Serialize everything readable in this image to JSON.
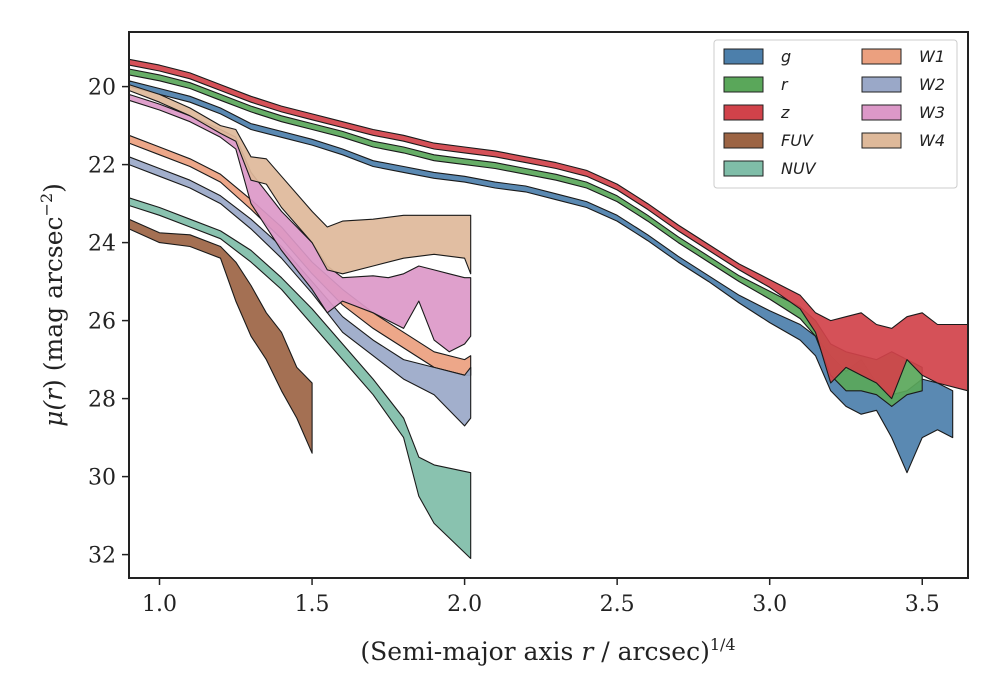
{
  "chart_data": {
    "type": "area",
    "xlabel_main": "(Semi-major axis ",
    "xlabel_var": "r",
    "xlabel_tail": " / arcsec)",
    "xlabel_exp": "1/4",
    "ylabel_main": "μ(",
    "ylabel_var": "r",
    "ylabel_tail": ") (mag arcsec",
    "ylabel_exp": "−2",
    "ylabel_close": ")",
    "xlim": [
      0.9,
      3.65
    ],
    "ylim": [
      32.6,
      18.6
    ],
    "y_inverted": true,
    "grid": false,
    "legend_placement": "top-right",
    "xticks": [
      1.0,
      1.5,
      2.0,
      2.5,
      3.0,
      3.5
    ],
    "xtick_labels": [
      "1.0",
      "1.5",
      "2.0",
      "2.5",
      "3.0",
      "3.5"
    ],
    "yticks": [
      20,
      22,
      24,
      26,
      28,
      30,
      32
    ],
    "ytick_labels": [
      "20",
      "22",
      "24",
      "26",
      "28",
      "30",
      "32"
    ],
    "series": [
      {
        "name": "g",
        "color": "#4c7fab",
        "x": [
          0.9,
          1.0,
          1.1,
          1.2,
          1.3,
          1.4,
          1.5,
          1.6,
          1.7,
          1.8,
          1.9,
          2.0,
          2.1,
          2.2,
          2.3,
          2.4,
          2.5,
          2.6,
          2.7,
          2.8,
          2.9,
          3.0,
          3.1,
          3.15,
          3.2,
          3.25,
          3.3,
          3.35,
          3.4,
          3.45,
          3.5,
          3.55,
          3.6
        ],
        "y1": [
          19.85,
          20.05,
          20.25,
          20.55,
          20.95,
          21.15,
          21.35,
          21.6,
          21.9,
          22.05,
          22.2,
          22.3,
          22.45,
          22.55,
          22.75,
          22.95,
          23.3,
          23.8,
          24.35,
          24.85,
          25.35,
          25.75,
          26.1,
          26.4,
          26.9,
          27.3,
          27.0,
          27.6,
          27.9,
          27.8,
          27.5,
          27.6,
          27.8
        ],
        "y2": [
          20.0,
          20.2,
          20.4,
          20.7,
          21.1,
          21.3,
          21.5,
          21.75,
          22.05,
          22.2,
          22.35,
          22.45,
          22.6,
          22.7,
          22.9,
          23.1,
          23.45,
          23.95,
          24.5,
          25.0,
          25.55,
          26.05,
          26.5,
          26.9,
          27.8,
          28.2,
          28.4,
          28.3,
          29.0,
          29.9,
          29.0,
          28.8,
          29.0
        ]
      },
      {
        "name": "r",
        "color": "#5aa75a",
        "x": [
          0.9,
          1.0,
          1.1,
          1.2,
          1.3,
          1.4,
          1.5,
          1.6,
          1.7,
          1.8,
          1.9,
          2.0,
          2.1,
          2.2,
          2.3,
          2.4,
          2.5,
          2.6,
          2.7,
          2.8,
          2.9,
          3.0,
          3.1,
          3.15,
          3.2,
          3.25,
          3.3,
          3.35,
          3.4,
          3.45,
          3.5
        ],
        "y1": [
          19.55,
          19.7,
          19.9,
          20.2,
          20.5,
          20.75,
          20.95,
          21.15,
          21.4,
          21.55,
          21.75,
          21.85,
          21.95,
          22.1,
          22.25,
          22.45,
          22.8,
          23.3,
          23.85,
          24.35,
          24.85,
          25.25,
          25.65,
          26.0,
          26.6,
          26.8,
          26.9,
          27.0,
          26.8,
          27.0,
          27.2
        ],
        "y2": [
          19.7,
          19.85,
          20.05,
          20.35,
          20.65,
          20.9,
          21.1,
          21.3,
          21.55,
          21.7,
          21.9,
          22.0,
          22.1,
          22.25,
          22.4,
          22.6,
          22.95,
          23.45,
          24.0,
          24.5,
          25.0,
          25.45,
          25.95,
          26.4,
          27.4,
          27.8,
          27.8,
          27.9,
          28.2,
          27.9,
          27.8
        ]
      },
      {
        "name": "z",
        "color": "#d1424a",
        "x": [
          0.9,
          1.0,
          1.1,
          1.2,
          1.3,
          1.4,
          1.5,
          1.6,
          1.7,
          1.8,
          1.9,
          2.0,
          2.1,
          2.2,
          2.3,
          2.4,
          2.5,
          2.6,
          2.7,
          2.8,
          2.9,
          3.0,
          3.1,
          3.15,
          3.2,
          3.25,
          3.3,
          3.35,
          3.4,
          3.45,
          3.5,
          3.55,
          3.65
        ],
        "y1": [
          19.3,
          19.45,
          19.65,
          19.95,
          20.25,
          20.5,
          20.7,
          20.9,
          21.1,
          21.25,
          21.45,
          21.55,
          21.65,
          21.8,
          21.95,
          22.15,
          22.5,
          23.0,
          23.55,
          24.05,
          24.55,
          24.95,
          25.35,
          25.8,
          26.0,
          25.9,
          25.8,
          26.1,
          26.2,
          25.9,
          25.8,
          26.1,
          26.1
        ],
        "y2": [
          19.45,
          19.6,
          19.8,
          20.1,
          20.4,
          20.65,
          20.85,
          21.05,
          21.25,
          21.4,
          21.6,
          21.7,
          21.8,
          21.95,
          22.1,
          22.3,
          22.65,
          23.15,
          23.7,
          24.2,
          24.7,
          25.15,
          25.7,
          26.3,
          27.6,
          27.2,
          27.4,
          27.6,
          28.0,
          27.0,
          27.4,
          27.6,
          27.8
        ]
      },
      {
        "name": "FUV",
        "color": "#9c6444",
        "x": [
          0.9,
          1.0,
          1.1,
          1.2,
          1.25,
          1.3,
          1.35,
          1.4,
          1.45,
          1.5
        ],
        "y1": [
          23.4,
          23.75,
          23.8,
          24.1,
          24.5,
          25.1,
          25.8,
          26.3,
          27.2,
          27.6
        ],
        "y2": [
          23.65,
          24.0,
          24.1,
          24.4,
          25.5,
          26.4,
          27.0,
          27.8,
          28.5,
          29.4
        ]
      },
      {
        "name": "NUV",
        "color": "#7fbda8",
        "x": [
          0.9,
          1.0,
          1.1,
          1.2,
          1.3,
          1.4,
          1.5,
          1.6,
          1.7,
          1.8,
          1.85,
          1.9,
          2.02
        ],
        "y1": [
          22.85,
          23.1,
          23.4,
          23.7,
          24.2,
          24.9,
          25.7,
          26.6,
          27.5,
          28.5,
          29.5,
          29.7,
          29.9
        ],
        "y2": [
          23.05,
          23.3,
          23.6,
          23.9,
          24.5,
          25.2,
          26.1,
          27.0,
          27.9,
          29.0,
          30.5,
          31.2,
          32.1
        ]
      },
      {
        "name": "W1",
        "color": "#eba07f",
        "x": [
          0.9,
          1.0,
          1.1,
          1.2,
          1.3,
          1.4,
          1.5,
          1.6,
          1.7,
          1.8,
          1.9,
          2.0,
          2.02
        ],
        "y1": [
          21.25,
          21.55,
          21.85,
          22.25,
          22.9,
          23.6,
          24.5,
          25.2,
          25.8,
          26.3,
          26.8,
          27.0,
          26.9
        ],
        "y2": [
          21.45,
          21.75,
          22.05,
          22.45,
          23.15,
          23.9,
          24.8,
          25.6,
          26.2,
          26.7,
          27.2,
          27.4,
          27.4
        ]
      },
      {
        "name": "W2",
        "color": "#9aa8c8",
        "x": [
          0.9,
          1.0,
          1.1,
          1.2,
          1.3,
          1.4,
          1.5,
          1.6,
          1.7,
          1.8,
          1.9,
          2.0,
          2.02
        ],
        "y1": [
          21.8,
          22.1,
          22.4,
          22.8,
          23.4,
          24.1,
          25.0,
          25.9,
          26.5,
          27.0,
          27.2,
          27.4,
          27.2
        ],
        "y2": [
          22.0,
          22.3,
          22.6,
          23.0,
          23.65,
          24.4,
          25.3,
          26.3,
          26.9,
          27.5,
          27.9,
          28.7,
          28.5
        ]
      },
      {
        "name": "W3",
        "color": "#dc98c8",
        "x": [
          0.9,
          1.0,
          1.1,
          1.2,
          1.25,
          1.3,
          1.4,
          1.5,
          1.55,
          1.6,
          1.7,
          1.75,
          1.8,
          1.85,
          1.9,
          1.95,
          2.0,
          2.02
        ],
        "y1": [
          20.2,
          20.45,
          20.75,
          21.1,
          21.3,
          22.2,
          23.2,
          24.0,
          24.6,
          24.9,
          24.85,
          24.9,
          24.8,
          24.6,
          24.7,
          24.8,
          24.9,
          24.9
        ],
        "y2": [
          20.35,
          20.6,
          20.9,
          21.3,
          21.6,
          23.0,
          24.2,
          25.2,
          25.8,
          25.5,
          25.8,
          26.0,
          26.2,
          25.5,
          26.5,
          26.8,
          26.6,
          26.4
        ]
      },
      {
        "name": "W4",
        "color": "#deb99a",
        "x": [
          0.9,
          1.0,
          1.1,
          1.2,
          1.25,
          1.3,
          1.35,
          1.4,
          1.5,
          1.55,
          1.6,
          1.7,
          1.8,
          1.9,
          2.0,
          2.02
        ],
        "y1": [
          19.95,
          20.2,
          20.55,
          21.0,
          21.1,
          21.8,
          21.85,
          22.3,
          23.2,
          23.6,
          23.45,
          23.4,
          23.3,
          23.3,
          23.3,
          23.3
        ],
        "y2": [
          20.1,
          20.4,
          20.75,
          21.2,
          21.4,
          22.4,
          22.5,
          23.1,
          24.0,
          24.7,
          24.8,
          24.6,
          24.4,
          24.3,
          24.4,
          24.8
        ]
      }
    ]
  }
}
